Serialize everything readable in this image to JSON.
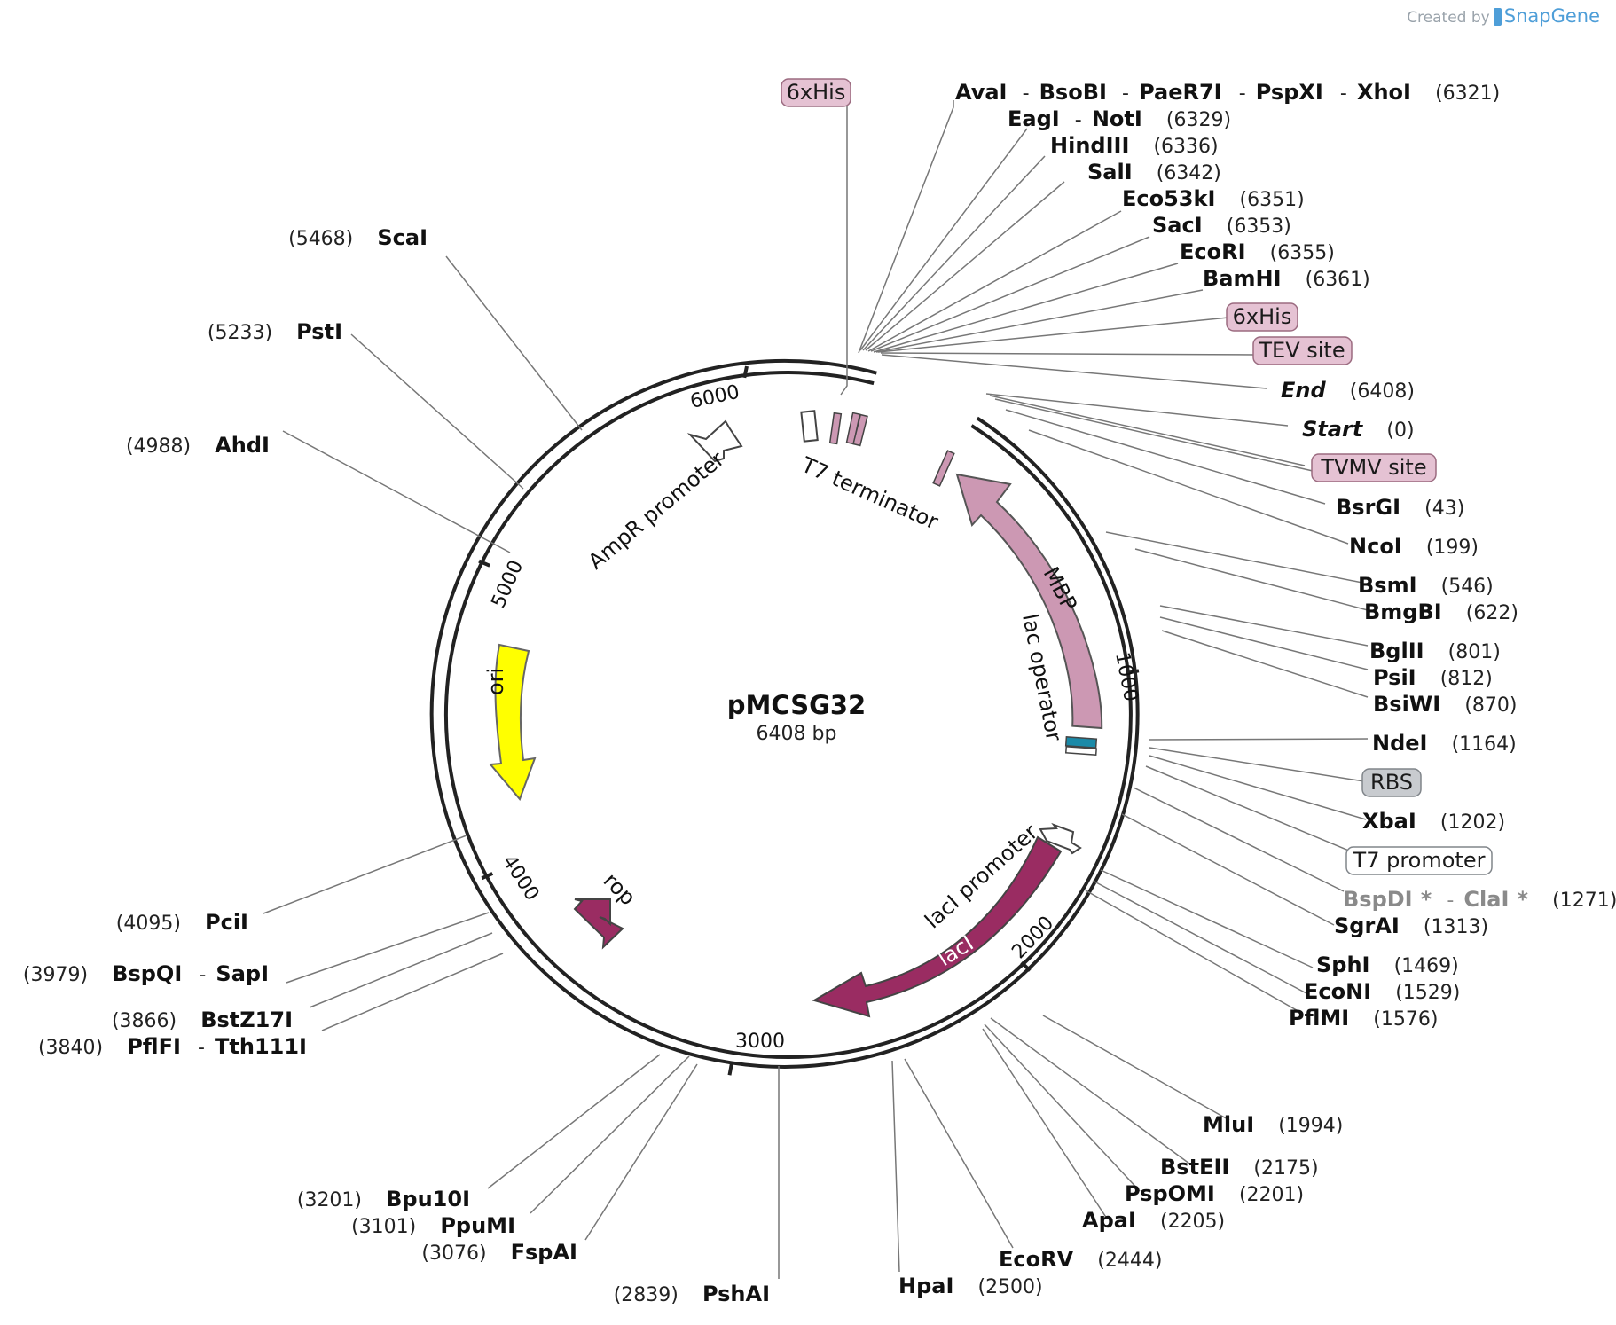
{
  "watermark": {
    "created_by": "Created by",
    "brand": "SnapGene"
  },
  "plasmid": {
    "name": "pMCSG32",
    "size_label": "6408 bp"
  },
  "ticks": [
    "1000",
    "2000",
    "3000",
    "4000",
    "5000",
    "6000"
  ],
  "features": {
    "mbp": "MBP",
    "lac_operator": "lac operator",
    "laci": "lacI",
    "laci_promoter": "lacI promoter",
    "ori": "ori",
    "rop": "rop",
    "ampr_promoter": "AmpR promoter",
    "t7_terminator": "T7 terminator"
  },
  "tags": {
    "his_top": "6xHis",
    "his_right": "6xHis",
    "tev": "TEV site",
    "tvmv": "TVMV site",
    "rbs": "RBS",
    "t7_promoter": "T7 promoter"
  },
  "sites": {
    "avai": "AvaI",
    "bsobi": "BsoBI",
    "paer7i": "PaeR7I",
    "pspxi": "PspXI",
    "xhoi": "XhoI",
    "xhoi_pos": "(6321)",
    "eagi": "EagI",
    "noti": "NotI",
    "noti_pos": "(6329)",
    "hindiii": "HindIII",
    "hindiii_pos": "(6336)",
    "sali": "SalI",
    "sali_pos": "(6342)",
    "eco53ki": "Eco53kI",
    "eco53ki_pos": "(6351)",
    "saci": "SacI",
    "saci_pos": "(6353)",
    "ecori": "EcoRI",
    "ecori_pos": "(6355)",
    "bamhi": "BamHI",
    "bamhi_pos": "(6361)",
    "end": "End",
    "end_pos": "(6408)",
    "start": "Start",
    "start_pos": "(0)",
    "bsrgi": "BsrGI",
    "bsrgi_pos": "(43)",
    "ncoi": "NcoI",
    "ncoi_pos": "(199)",
    "bsmi": "BsmI",
    "bsmi_pos": "(546)",
    "bmgbi": "BmgBI",
    "bmgbi_pos": "(622)",
    "bglii": "BglII",
    "bglii_pos": "(801)",
    "psii": "PsiI",
    "psii_pos": "(812)",
    "bsiwi": "BsiWI",
    "bsiwi_pos": "(870)",
    "ndei": "NdeI",
    "ndei_pos": "(1164)",
    "xbai": "XbaI",
    "xbai_pos": "(1202)",
    "bspdi": "BspDI",
    "clai": "ClaI",
    "star": "*",
    "clai_pos": "(1271)",
    "sgrai": "SgrAI",
    "sgrai_pos": "(1313)",
    "sphi": "SphI",
    "sphi_pos": "(1469)",
    "econi": "EcoNI",
    "econi_pos": "(1529)",
    "pflmi": "PflMI",
    "pflmi_pos": "(1576)",
    "mlui": "MluI",
    "mlui_pos": "(1994)",
    "bsteii": "BstEII",
    "bsteii_pos": "(2175)",
    "pspomi": "PspOMI",
    "pspomi_pos": "(2201)",
    "apai": "ApaI",
    "apai_pos": "(2205)",
    "ecorv": "EcoRV",
    "ecorv_pos": "(2444)",
    "hpai": "HpaI",
    "hpai_pos": "(2500)",
    "pshai": "PshAI",
    "pshai_pos": "(2839)",
    "fspai": "FspAI",
    "fspai_pos": "(3076)",
    "ppumi": "PpuMI",
    "ppumi_pos": "(3101)",
    "bpu10i": "Bpu10I",
    "bpu10i_pos": "(3201)",
    "pflfi": "PflFI",
    "tth111i": "Tth111I",
    "tth111i_pos": "(3840)",
    "bstz17i": "BstZ17I",
    "bstz17i_pos": "(3866)",
    "bspqi": "BspQI",
    "sapi": "SapI",
    "sapi_pos": "(3979)",
    "pcii": "PciI",
    "pcii_pos": "(4095)",
    "ahdi": "AhdI",
    "ahdi_pos": "(4988)",
    "psti": "PstI",
    "psti_pos": "(5233)",
    "scai": "ScaI",
    "scai_pos": "(5468)"
  },
  "dash": "-"
}
